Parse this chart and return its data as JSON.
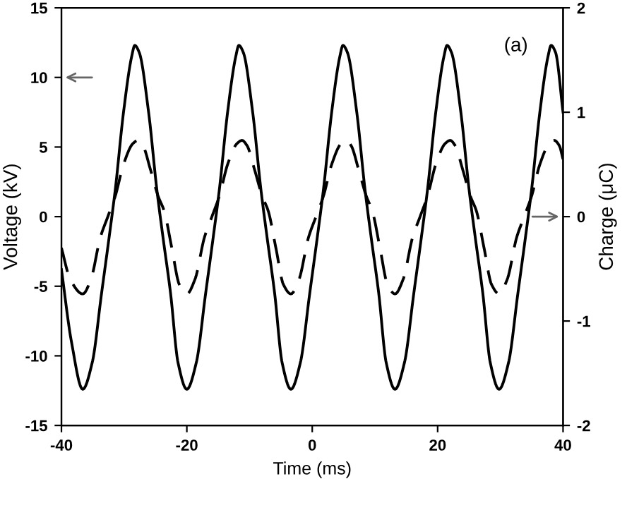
{
  "chart_data": {
    "type": "line",
    "xlabel": "Time (ms)",
    "ylabel": "Voltage (kV)",
    "y2label": "Charge (μC)",
    "annotations": [
      "(a)"
    ],
    "xlim": [
      -40,
      40
    ],
    "xticks": [
      -40,
      -20,
      0,
      20,
      40
    ],
    "ylim": [
      -15,
      15
    ],
    "yticks": [
      -15,
      -10,
      -5,
      0,
      5,
      10,
      15
    ],
    "y2lim": [
      -2,
      2
    ],
    "y2ticks": [
      -2,
      -1,
      0,
      1,
      2
    ],
    "grid": false,
    "legend": false,
    "marker": "none",
    "series": [
      {
        "color": "#000000",
        "line_style": "solid",
        "x": [
          -40,
          -38.4,
          -36.6,
          -35.1,
          -33.6,
          -32.4,
          -31.4,
          -30.1,
          -28.8,
          -28.3,
          -27.6,
          -26.1,
          -24.8,
          -23.8,
          -22.6,
          -21.4,
          -20,
          -18.5,
          -17,
          -15.8,
          -14.8,
          -13.5,
          -12.2,
          -11.7,
          -11,
          -9.5,
          -8.2,
          -7.2,
          -6,
          -4.8,
          -3.4,
          -1.9,
          -0.4,
          0.8,
          1.8,
          3.1,
          4.4,
          4.9,
          5.6,
          7.1,
          8.4,
          9.4,
          10.6,
          11.8,
          13.2,
          14.7,
          16.2,
          17.4,
          18.4,
          19.7,
          21,
          21.5,
          22.2,
          23.7,
          25,
          26,
          27.2,
          28.4,
          29.8,
          31.3,
          32.8,
          34,
          35,
          36.3,
          37.6,
          38.1,
          38.8,
          40
        ],
        "values": [
          -3.8,
          -9,
          -12.4,
          -10.5,
          -5.5,
          -1.5,
          2,
          7.5,
          11.5,
          12.3,
          11.8,
          7.5,
          2,
          -1.5,
          -5.5,
          -10.5,
          -12.4,
          -10.5,
          -5.5,
          -1.5,
          2,
          7.5,
          11.5,
          12.3,
          11.8,
          7.5,
          2,
          -1.5,
          -5.5,
          -10.5,
          -12.4,
          -10.5,
          -5.5,
          -1.5,
          2,
          7.5,
          11.5,
          12.3,
          11.8,
          7.5,
          2,
          -1.5,
          -5.5,
          -10.5,
          -12.4,
          -10.5,
          -5.5,
          -1.5,
          2,
          7.5,
          11.5,
          12.3,
          11.8,
          7.5,
          2,
          -1.5,
          -5.5,
          -10.5,
          -12.4,
          -10.5,
          -5.5,
          -1.5,
          2,
          7.5,
          11.5,
          12.3,
          11.8,
          7.5
        ]
      },
      {
        "color": "#000000",
        "line_style": "dashed",
        "axis": "y2",
        "x": [
          -40,
          -38.6,
          -36.6,
          -35.3,
          -33.8,
          -32.6,
          -31.4,
          -30.1,
          -28.6,
          -27.8,
          -27,
          -25.8,
          -24.6,
          -23.6,
          -22.4,
          -21.2,
          -20,
          -18.7,
          -17.2,
          -16,
          -14.8,
          -13.5,
          -12,
          -11.2,
          -10.4,
          -9.2,
          -8,
          -7,
          -5.8,
          -4.6,
          -3.4,
          -2.1,
          -0.6,
          0.6,
          1.8,
          3.1,
          4.6,
          5.4,
          6.2,
          7.4,
          8.6,
          9.6,
          10.8,
          12,
          13.2,
          14.5,
          16,
          17.2,
          18.4,
          19.7,
          21.2,
          22,
          22.8,
          24,
          25.2,
          26.2,
          27.4,
          28.6,
          29.8,
          31.1,
          32.6,
          33.8,
          35,
          36.3,
          37.8,
          38.6,
          39.4,
          40
        ],
        "values": [
          -0.3,
          -0.6,
          -0.74,
          -0.6,
          -0.2,
          0,
          0.2,
          0.5,
          0.7,
          0.73,
          0.68,
          0.45,
          0.2,
          0.05,
          -0.3,
          -0.65,
          -0.74,
          -0.6,
          -0.2,
          0,
          0.2,
          0.5,
          0.7,
          0.73,
          0.68,
          0.45,
          0.2,
          0.05,
          -0.3,
          -0.65,
          -0.74,
          -0.6,
          -0.2,
          0,
          0.2,
          0.5,
          0.7,
          0.73,
          0.68,
          0.45,
          0.2,
          0.05,
          -0.3,
          -0.65,
          -0.74,
          -0.6,
          -0.2,
          0,
          0.2,
          0.5,
          0.7,
          0.73,
          0.68,
          0.45,
          0.2,
          0.05,
          -0.3,
          -0.65,
          -0.74,
          -0.6,
          -0.2,
          0,
          0.2,
          0.5,
          0.7,
          0.73,
          0.68,
          0.55
        ]
      }
    ]
  }
}
